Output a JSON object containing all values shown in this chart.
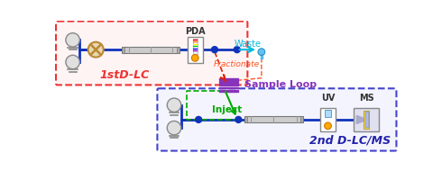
{
  "label_1stLC": "1stD-LC",
  "label_2ndLC": "2nd D-LC/MS",
  "label_sample_loop": "Sample Loop",
  "label_pda": "PDA",
  "label_waste": "Waste",
  "label_fractionate": "Fractionate",
  "label_inject": "Inject",
  "label_uv": "UV",
  "label_ms": "MS",
  "color_1st_box": "#ee3333",
  "color_2nd_box": "#4444cc",
  "color_line_blue": "#1133bb",
  "color_line_cyan": "#00bbdd",
  "color_arrow_red": "#dd2200",
  "color_arrow_green": "#00aa00",
  "color_waste_text": "#00bbdd",
  "color_fractionate_text": "#ff5522",
  "color_inject_text": "#00aa00",
  "color_1st_label": "#ee3333",
  "color_2nd_label": "#2222aa",
  "color_sample_label": "#8833bb",
  "color_loop_purple": "#8833bb",
  "pump_fill": "#e0e0e0",
  "pump_edge": "#888888",
  "mixer_fill": "#e8d8b0",
  "mixer_edge": "#bb8833",
  "col_fill": "#cccccc",
  "col_edge": "#777777",
  "dot_blue": "#1133bb",
  "drop_fill": "#55bbee",
  "drop_edge": "#2288bb"
}
